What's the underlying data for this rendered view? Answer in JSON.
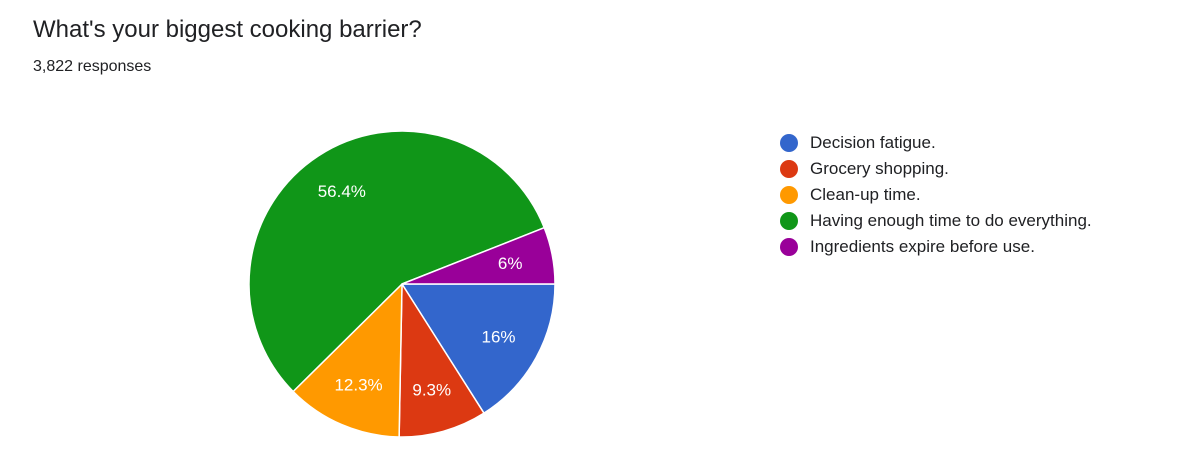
{
  "form": {
    "question": "What's your biggest cooking barrier?",
    "responses": "3,822 responses"
  },
  "chart_data": {
    "type": "pie",
    "start": "3 o'clock",
    "direction": "clockwise",
    "legend_position": "right",
    "slices": [
      {
        "label": "Decision fatigue.",
        "value": 16.0,
        "display": "16%",
        "color": "#3366cc"
      },
      {
        "label": "Grocery shopping.",
        "value": 9.3,
        "display": "9.3%",
        "color": "#dc3912"
      },
      {
        "label": "Clean-up time.",
        "value": 12.3,
        "display": "12.3%",
        "color": "#ff9900"
      },
      {
        "label": "Having enough time to do everything.",
        "value": 56.4,
        "display": "56.4%",
        "color": "#109618"
      },
      {
        "label": "Ingredients expire before use.",
        "value": 6.0,
        "display": "6%",
        "color": "#990099"
      }
    ]
  }
}
